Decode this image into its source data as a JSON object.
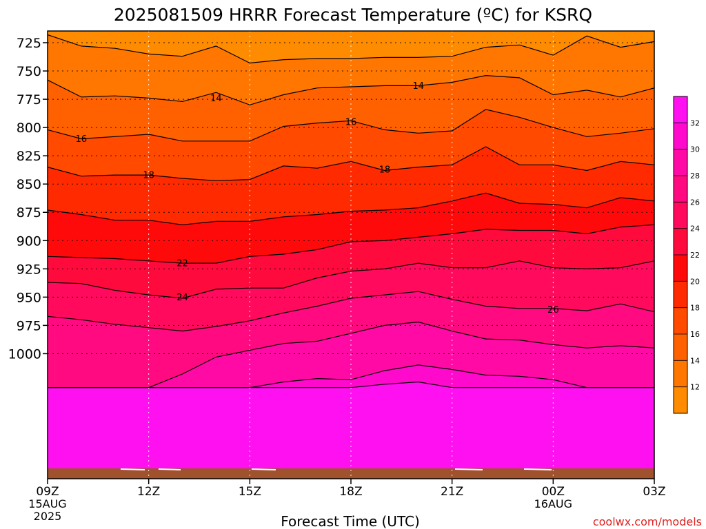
{
  "chart_data": {
    "type": "contour",
    "title": "2025081509 HRRR Forecast Temperature (ºC) for KSRQ",
    "xlabel": "Forecast Time (UTC)",
    "ylabel": "",
    "credit": "coolwx.com/models",
    "x_ticks": [
      {
        "h": 0,
        "label": "09Z"
      },
      {
        "h": 3,
        "label": "12Z"
      },
      {
        "h": 6,
        "label": "15Z"
      },
      {
        "h": 9,
        "label": "18Z"
      },
      {
        "h": 12,
        "label": "21Z"
      },
      {
        "h": 15,
        "label": "00Z"
      },
      {
        "h": 18,
        "label": "03Z"
      }
    ],
    "x_sublabels": [
      {
        "h": 0,
        "lines": [
          "15AUG",
          "2025"
        ]
      },
      {
        "h": 15,
        "lines": [
          "16AUG"
        ]
      }
    ],
    "xlim": [
      0,
      18
    ],
    "y_ticks": [
      725,
      750,
      775,
      800,
      825,
      850,
      875,
      900,
      925,
      950,
      975,
      1000
    ],
    "ylim": [
      1020,
      717
    ],
    "y_scale": "linear-inverted (hPa)",
    "grid": true,
    "surface_color": "#A0522D",
    "colorbar": {
      "ticks": [
        12,
        14,
        16,
        18,
        20,
        22,
        24,
        26,
        28,
        30,
        32
      ],
      "colors": [
        "#FF8C00",
        "#FF7700",
        "#FF6100",
        "#FF4A00",
        "#FF2A00",
        "#FF0A0A",
        "#FF0A3C",
        "#FF0A5C",
        "#FF0A80",
        "#FF0AA5",
        "#FF0ACC",
        "#FF10F0"
      ]
    },
    "contour_levels": [
      12,
      14,
      16,
      18,
      20,
      22,
      24,
      26,
      28,
      30,
      32
    ],
    "contours": [
      {
        "level": 12,
        "p": [
          718,
          728,
          730,
          735,
          737,
          728,
          743,
          740,
          739,
          739,
          738,
          738,
          737,
          729,
          727,
          736,
          719,
          729,
          724
        ]
      },
      {
        "level": 14,
        "p": [
          758,
          773,
          772,
          774,
          777,
          769,
          780,
          771,
          765,
          764,
          763,
          763,
          760,
          754,
          756,
          771,
          767,
          773,
          765
        ]
      },
      {
        "level": 16,
        "p": [
          802,
          810,
          808,
          806,
          812,
          812,
          812,
          799,
          796,
          794,
          802,
          805,
          803,
          784,
          791,
          800,
          808,
          805,
          801
        ]
      },
      {
        "level": 18,
        "p": [
          835,
          843,
          842,
          842,
          845,
          847,
          846,
          834,
          836,
          830,
          838,
          835,
          833,
          817,
          833,
          833,
          838,
          830,
          833
        ]
      },
      {
        "level": 20,
        "p": [
          873,
          877,
          882,
          882,
          886,
          883,
          883,
          879,
          877,
          874,
          873,
          871,
          865,
          858,
          867,
          868,
          871,
          862,
          865
        ]
      },
      {
        "level": 22,
        "p": [
          914,
          915,
          916,
          918,
          920,
          920,
          914,
          912,
          908,
          901,
          900,
          897,
          894,
          890,
          891,
          891,
          894,
          888,
          886
        ]
      },
      {
        "level": 24,
        "p": [
          937,
          938,
          944,
          948,
          951,
          943,
          942,
          942,
          933,
          927,
          925,
          920,
          924,
          924,
          918,
          924,
          925,
          924,
          918
        ]
      },
      {
        "level": 26,
        "p": [
          967,
          970,
          974,
          977,
          980,
          976,
          971,
          964,
          958,
          951,
          948,
          945,
          952,
          958,
          960,
          960,
          962,
          956,
          963
        ]
      },
      {
        "level": 28,
        "p": [
          1030,
          1030,
          1030,
          1030,
          1018,
          1003,
          997,
          991,
          989,
          982,
          975,
          972,
          980,
          987,
          988,
          992,
          995,
          993,
          995
        ]
      },
      {
        "level": 30,
        "p": [
          1030,
          1030,
          1030,
          1030,
          1030,
          1030,
          1030,
          1025,
          1022,
          1023,
          1015,
          1010,
          1014,
          1019,
          1020,
          1023,
          1030,
          1030,
          1030
        ]
      },
      {
        "level": 32,
        "p": [
          1030,
          1030,
          1030,
          1030,
          1030,
          1030,
          1030,
          1030,
          1030,
          1030,
          1027,
          1025,
          1030,
          1030,
          1030,
          1030,
          1030,
          1030,
          1030
        ]
      }
    ],
    "contour_labels": [
      {
        "level": 14,
        "h": 5.0,
        "p": 774,
        "text": "14"
      },
      {
        "level": 14,
        "h": 11.0,
        "p": 763,
        "text": "14"
      },
      {
        "level": 16,
        "h": 1.0,
        "p": 810,
        "text": "16"
      },
      {
        "level": 16,
        "h": 9.0,
        "p": 795,
        "text": "16"
      },
      {
        "level": 18,
        "h": 3.0,
        "p": 842,
        "text": "18"
      },
      {
        "level": 18,
        "h": 10.0,
        "p": 837,
        "text": "18"
      },
      {
        "level": 22,
        "h": 4.0,
        "p": 920,
        "text": "22"
      },
      {
        "level": 24,
        "h": 4.0,
        "p": 950,
        "text": "24"
      },
      {
        "level": 26,
        "h": 15.0,
        "p": 961,
        "text": "26"
      }
    ]
  }
}
